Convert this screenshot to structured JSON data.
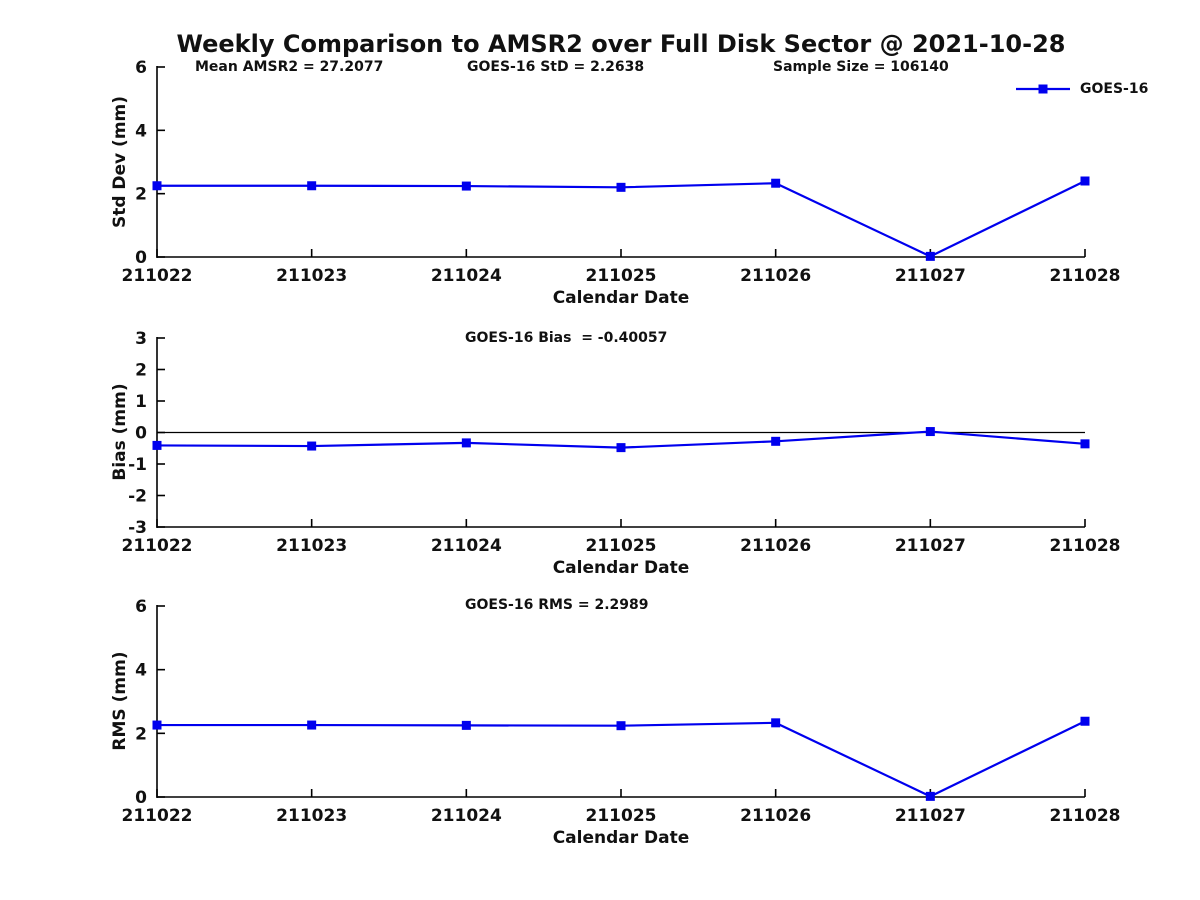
{
  "title": "Weekly Comparison to AMSR2 over Full Disk Sector @ 2021-10-28",
  "legend": {
    "label": "GOES-16"
  },
  "colors": {
    "series": "#0000ee",
    "axis": "#000000",
    "text": "#111111"
  },
  "chart_data": [
    {
      "type": "line",
      "panel": "std-dev",
      "ylabel": "Std Dev (mm)",
      "xlabel": "Calendar Date",
      "ylim": [
        0,
        6
      ],
      "yticks": [
        0,
        2,
        4,
        6
      ],
      "grid": false,
      "legend_position": "top-right",
      "categories": [
        "211022",
        "211023",
        "211024",
        "211025",
        "211026",
        "211027",
        "211028"
      ],
      "series": [
        {
          "name": "GOES-16",
          "values": [
            2.25,
            2.25,
            2.24,
            2.2,
            2.33,
            0.02,
            2.4
          ]
        }
      ],
      "annotations": [
        "Mean AMSR2 = 27.2077",
        "GOES-16 StD = 2.2638",
        "Sample Size = 106140"
      ],
      "zero_line": false
    },
    {
      "type": "line",
      "panel": "bias",
      "ylabel": "Bias (mm)",
      "xlabel": "Calendar Date",
      "ylim": [
        -3,
        3
      ],
      "yticks": [
        -3,
        -2,
        -1,
        0,
        1,
        2,
        3
      ],
      "grid": false,
      "categories": [
        "211022",
        "211023",
        "211024",
        "211025",
        "211026",
        "211027",
        "211028"
      ],
      "series": [
        {
          "name": "GOES-16",
          "values": [
            -0.41,
            -0.43,
            -0.33,
            -0.48,
            -0.28,
            0.03,
            -0.36
          ]
        }
      ],
      "annotations": [
        "GOES-16 Bias  = -0.40057"
      ],
      "zero_line": true
    },
    {
      "type": "line",
      "panel": "rms",
      "ylabel": "RMS (mm)",
      "xlabel": "Calendar Date",
      "ylim": [
        0,
        6
      ],
      "yticks": [
        0,
        2,
        4,
        6
      ],
      "grid": false,
      "categories": [
        "211022",
        "211023",
        "211024",
        "211025",
        "211026",
        "211027",
        "211028"
      ],
      "series": [
        {
          "name": "GOES-16",
          "values": [
            2.26,
            2.26,
            2.25,
            2.24,
            2.33,
            0.02,
            2.38
          ]
        }
      ],
      "annotations": [
        "GOES-16 RMS = 2.2989"
      ],
      "zero_line": false
    }
  ]
}
